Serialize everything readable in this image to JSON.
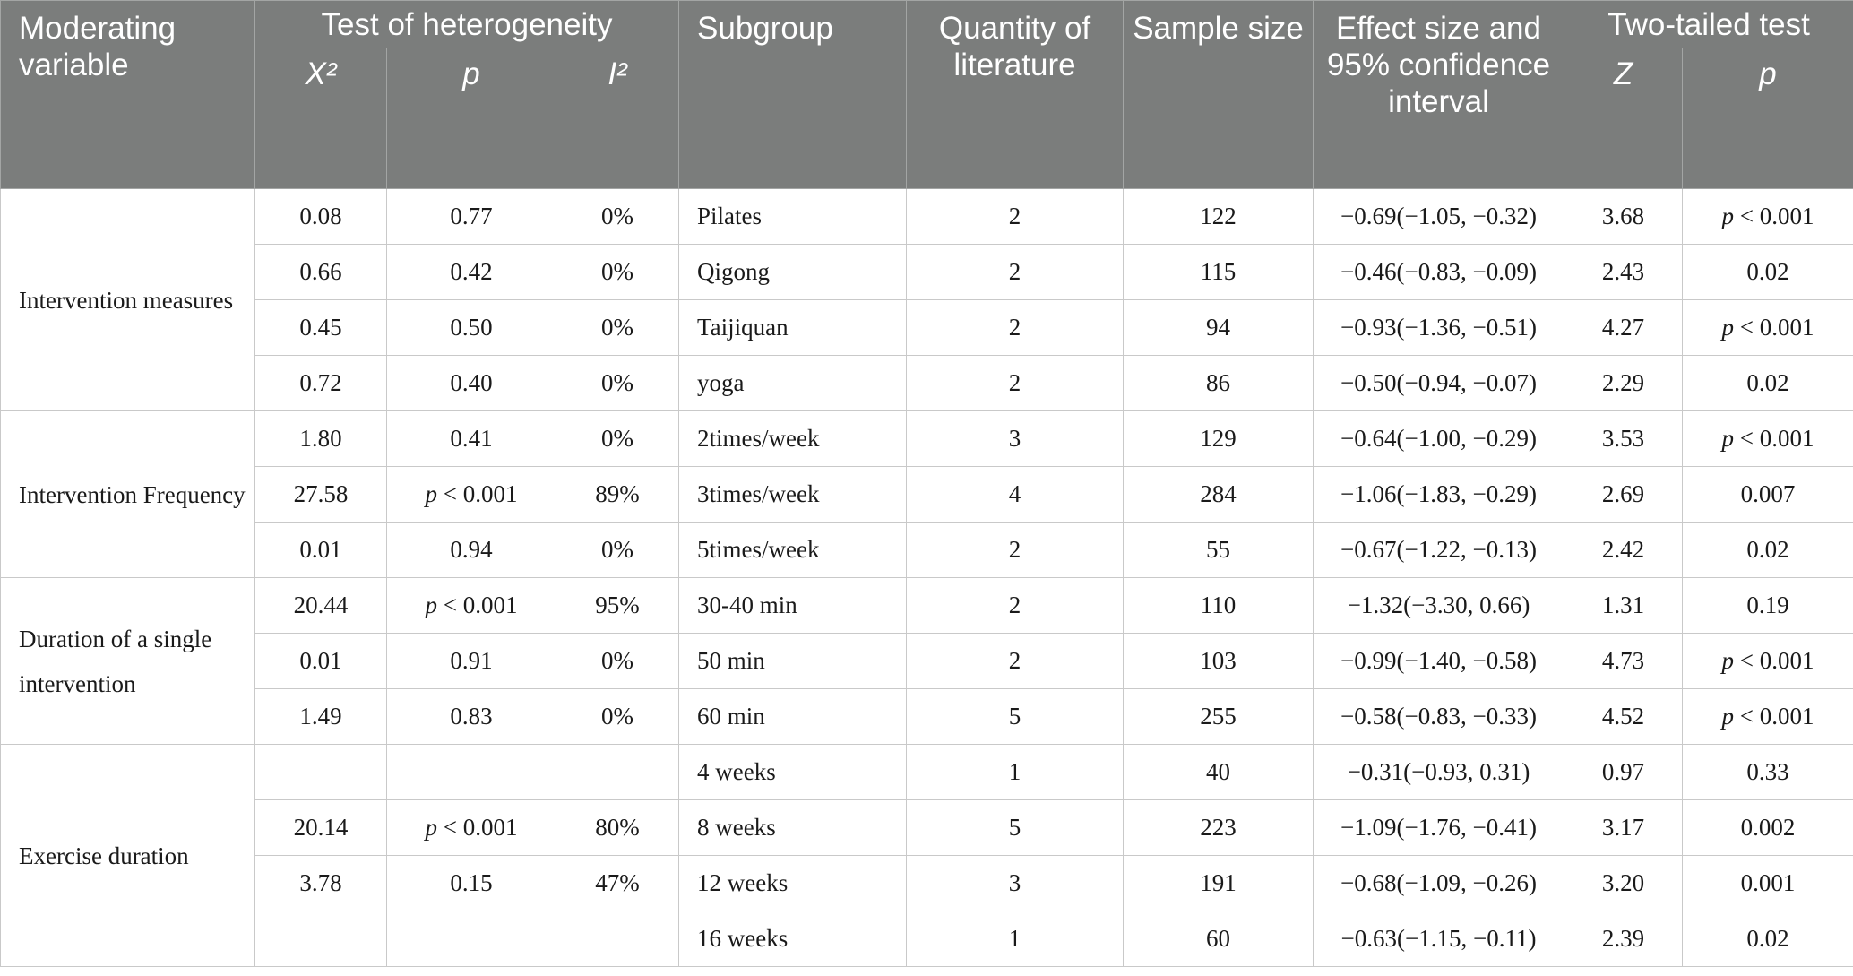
{
  "headers": {
    "moderating_variable": "Moderating variable",
    "test_of_heterogeneity": "Test of heterogeneity",
    "x2": "X²",
    "p": "p",
    "i2": "I²",
    "subgroup": "Subgroup",
    "quantity_of_literature": "Quantity of literature",
    "sample_size": "Sample size",
    "effect_size_ci": "Effect size and 95% confidence interval",
    "two_tailed_test": "Two-tailed test",
    "z": "Z",
    "p2": "p"
  },
  "groups": [
    {
      "moderator": "Intervention measures",
      "rows": [
        {
          "x2": "0.08",
          "p": "0.77",
          "i2": "0%",
          "subgroup": "Pilates",
          "quantity": "2",
          "sample": "122",
          "effect": "−0.69(−1.05, −0.32)",
          "z": "3.68",
          "p_test": "p < 0.001"
        },
        {
          "x2": "0.66",
          "p": "0.42",
          "i2": "0%",
          "subgroup": "Qigong",
          "quantity": "2",
          "sample": "115",
          "effect": "−0.46(−0.83, −0.09)",
          "z": "2.43",
          "p_test": "0.02"
        },
        {
          "x2": "0.45",
          "p": "0.50",
          "i2": "0%",
          "subgroup": "Taijiquan",
          "quantity": "2",
          "sample": "94",
          "effect": "−0.93(−1.36, −0.51)",
          "z": "4.27",
          "p_test": "p < 0.001"
        },
        {
          "x2": "0.72",
          "p": "0.40",
          "i2": "0%",
          "subgroup": "yoga",
          "quantity": "2",
          "sample": "86",
          "effect": "−0.50(−0.94, −0.07)",
          "z": "2.29",
          "p_test": "0.02"
        }
      ]
    },
    {
      "moderator": "Intervention Frequency",
      "rows": [
        {
          "x2": "1.80",
          "p": "0.41",
          "i2": "0%",
          "subgroup": "2times/week",
          "quantity": "3",
          "sample": "129",
          "effect": "−0.64(−1.00, −0.29)",
          "z": "3.53",
          "p_test": "p < 0.001"
        },
        {
          "x2": "27.58",
          "p": "p < 0.001",
          "i2": "89%",
          "subgroup": "3times/week",
          "quantity": "4",
          "sample": "284",
          "effect": "−1.06(−1.83, −0.29)",
          "z": "2.69",
          "p_test": "0.007"
        },
        {
          "x2": "0.01",
          "p": "0.94",
          "i2": "0%",
          "subgroup": "5times/week",
          "quantity": "2",
          "sample": "55",
          "effect": "−0.67(−1.22, −0.13)",
          "z": "2.42",
          "p_test": "0.02"
        }
      ]
    },
    {
      "moderator": "Duration of a single intervention",
      "rows": [
        {
          "x2": "20.44",
          "p": "p < 0.001",
          "i2": "95%",
          "subgroup": "30-40 min",
          "quantity": "2",
          "sample": "110",
          "effect": "−1.32(−3.30, 0.66)",
          "z": "1.31",
          "p_test": "0.19"
        },
        {
          "x2": "0.01",
          "p": "0.91",
          "i2": "0%",
          "subgroup": "50 min",
          "quantity": "2",
          "sample": "103",
          "effect": "−0.99(−1.40, −0.58)",
          "z": "4.73",
          "p_test": "p < 0.001"
        },
        {
          "x2": "1.49",
          "p": "0.83",
          "i2": "0%",
          "subgroup": "60 min",
          "quantity": "5",
          "sample": "255",
          "effect": "−0.58(−0.83, −0.33)",
          "z": "4.52",
          "p_test": "p < 0.001"
        }
      ]
    },
    {
      "moderator": "Exercise duration",
      "rows": [
        {
          "x2": "",
          "p": "",
          "i2": "",
          "subgroup": "4 weeks",
          "quantity": "1",
          "sample": "40",
          "effect": "−0.31(−0.93, 0.31)",
          "z": "0.97",
          "p_test": "0.33"
        },
        {
          "x2": "20.14",
          "p": "p < 0.001",
          "i2": "80%",
          "subgroup": "8 weeks",
          "quantity": "5",
          "sample": "223",
          "effect": "−1.09(−1.76, −0.41)",
          "z": "3.17",
          "p_test": "0.002"
        },
        {
          "x2": "3.78",
          "p": "0.15",
          "i2": "47%",
          "subgroup": "12 weeks",
          "quantity": "3",
          "sample": "191",
          "effect": "−0.68(−1.09, −0.26)",
          "z": "3.20",
          "p_test": "0.001"
        },
        {
          "x2": "",
          "p": "",
          "i2": "",
          "subgroup": "16 weeks",
          "quantity": "1",
          "sample": "60",
          "effect": "−0.63(−1.15, −0.11)",
          "z": "2.39",
          "p_test": "0.02"
        }
      ]
    }
  ]
}
